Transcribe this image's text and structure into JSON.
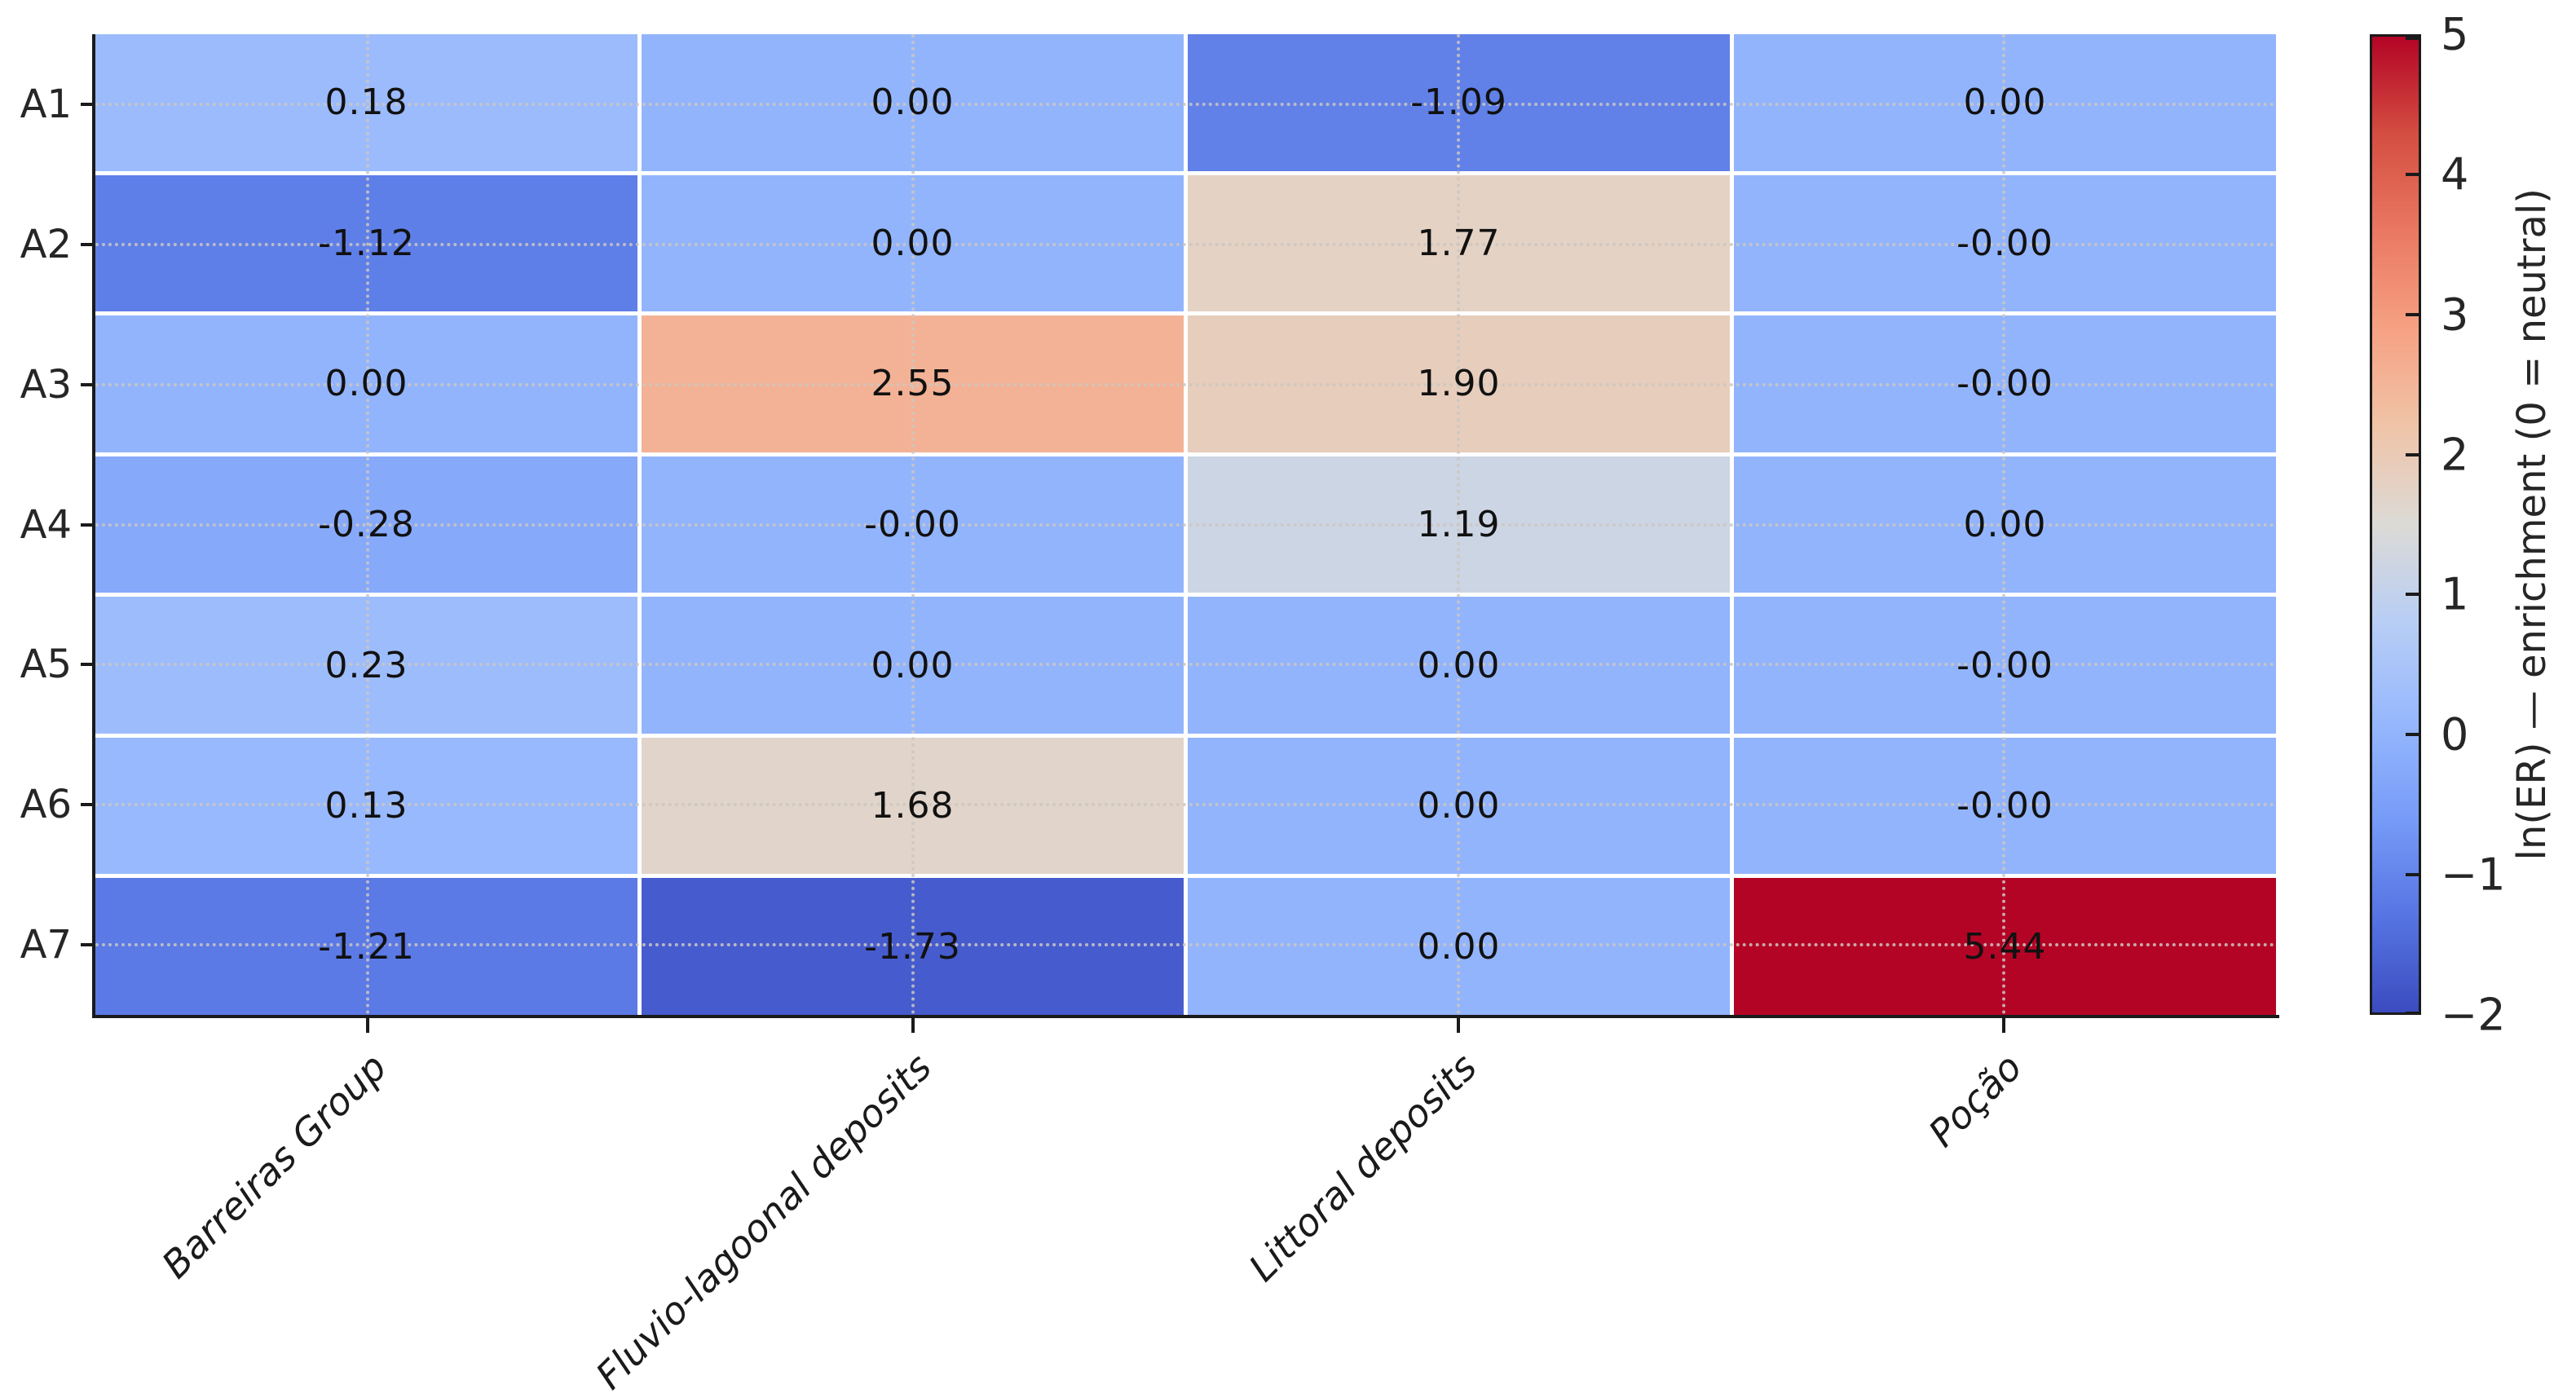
{
  "chart_data": {
    "type": "heatmap",
    "title": "",
    "rows": [
      "A1",
      "A2",
      "A3",
      "A4",
      "A5",
      "A6",
      "A7"
    ],
    "columns": [
      "Barreiras Group",
      "Fluvio-lagoonal deposits",
      "Littoral deposits",
      "Poção"
    ],
    "values": [
      [
        0.18,
        0.0,
        -1.09,
        0.0
      ],
      [
        -1.12,
        0.0,
        1.77,
        0.0
      ],
      [
        0.0,
        2.55,
        1.9,
        0.0
      ],
      [
        -0.28,
        0.0,
        1.19,
        0.0
      ],
      [
        0.23,
        0.0,
        0.0,
        0.0
      ],
      [
        0.13,
        1.68,
        0.0,
        0.0
      ],
      [
        -1.21,
        -1.73,
        0.0,
        5.44
      ]
    ],
    "cell_labels": [
      [
        "0.18",
        "0.00",
        "-1.09",
        "0.00"
      ],
      [
        "-1.12",
        "0.00",
        "1.77",
        "-0.00"
      ],
      [
        "0.00",
        "2.55",
        "1.90",
        "-0.00"
      ],
      [
        "-0.28",
        "-0.00",
        "1.19",
        "0.00"
      ],
      [
        "0.23",
        "0.00",
        "0.00",
        "-0.00"
      ],
      [
        "0.13",
        "1.68",
        "0.00",
        "-0.00"
      ],
      [
        "-1.21",
        "-1.73",
        "0.00",
        "5.44"
      ]
    ],
    "vmin": -2,
    "vmax": 5,
    "colorbar": {
      "label": "ln(ER) — enrichment (0 = neutral)",
      "tick_values": [
        5,
        4,
        3,
        2,
        1,
        0,
        -1,
        -2
      ],
      "tick_labels": [
        "5",
        "4",
        "3",
        "2",
        "1",
        "0",
        "−1",
        "−2"
      ],
      "position": "right"
    },
    "colormap": {
      "name": "coolwarm",
      "anchors": [
        [
          0.0,
          "#3b4cc0"
        ],
        [
          0.1,
          "#5775e3"
        ],
        [
          0.2,
          "#779cf8"
        ],
        [
          0.3,
          "#97b8fd"
        ],
        [
          0.4,
          "#b8cef5"
        ],
        [
          0.5,
          "#dcdad6"
        ],
        [
          0.6,
          "#f0c4a8"
        ],
        [
          0.7,
          "#f6a183"
        ],
        [
          0.8,
          "#ea7862"
        ],
        [
          0.9,
          "#d44e41"
        ],
        [
          1.0,
          "#b40426"
        ]
      ]
    },
    "grid": "dotted",
    "x_tick_style": "italic, rotated 45deg",
    "value_text_color": "#111111"
  }
}
